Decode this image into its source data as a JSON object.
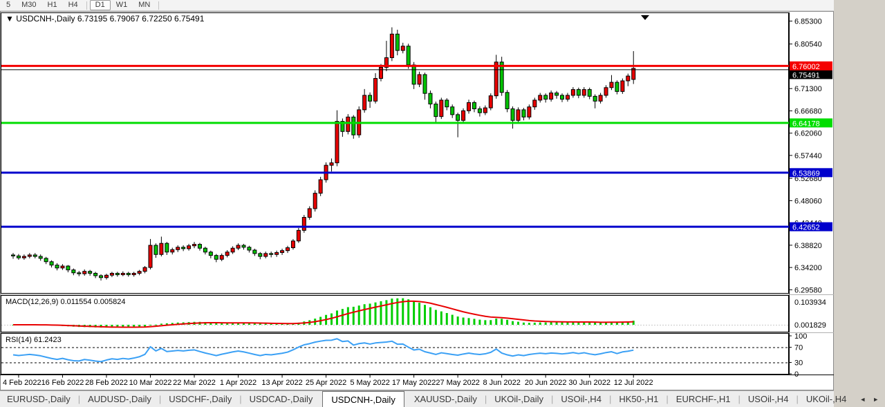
{
  "toolbar": {
    "items": [
      "5",
      "M30",
      "H1",
      "H4",
      "D1",
      "W1",
      "MN"
    ],
    "active": "D1",
    "separators_after": [
      "H4",
      "MN"
    ]
  },
  "chart": {
    "title_symbol": "USDCNH-,Daily",
    "ohlc_display": {
      "open": "6.73195",
      "high": "6.79067",
      "low": "6.72250",
      "close": "6.75491"
    },
    "price_axis_labels": [
      "6.85300",
      "6.80540",
      "6.71300",
      "6.66680",
      "6.62060",
      "6.57440",
      "6.52680",
      "6.48060",
      "6.43440",
      "6.38820",
      "6.34200",
      "6.29580"
    ],
    "ylim": [
      6.292,
      6.868
    ],
    "hlines": [
      {
        "value": 6.76002,
        "label": "6.76002",
        "color": "#f40000",
        "width": 3,
        "name": "resistance-line-red"
      },
      {
        "value": 6.64178,
        "label": "6.64178",
        "color": "#00dd00",
        "width": 3,
        "name": "support-line-green"
      },
      {
        "value": 6.53869,
        "label": "6.53869",
        "color": "#0000cc",
        "width": 3,
        "name": "support-line-blue-upper"
      },
      {
        "value": 6.42652,
        "label": "6.42652",
        "color": "#0000cc",
        "width": 3,
        "name": "support-line-blue-lower"
      }
    ],
    "bid_line": {
      "value": 6.75491,
      "label": "6.75491",
      "color": "#000000"
    }
  },
  "chart_data": {
    "type": "candlestick",
    "symbol": "USDCNH-",
    "timeframe": "Daily",
    "up_color": "#e60000",
    "down_color": "#00c300",
    "wick_color": "#000000",
    "x_labels": [
      "4 Feb 2022",
      "16 Feb 2022",
      "28 Feb 2022",
      "10 Mar 2022",
      "22 Mar 2022",
      "1 Apr 2022",
      "13 Apr 2022",
      "25 Apr 2022",
      "5 May 2022",
      "17 May 2022",
      "27 May 2022",
      "8 Jun 2022",
      "20 Jun 2022",
      "30 Jun 2022",
      "12 Jul 2022"
    ],
    "x_label_indices": [
      1,
      9,
      17,
      25,
      33,
      41,
      49,
      57,
      65,
      73,
      81,
      89,
      97,
      105,
      113
    ],
    "candles": [
      [
        6.368,
        6.372,
        6.36,
        6.366
      ],
      [
        6.366,
        6.37,
        6.358,
        6.362
      ],
      [
        6.362,
        6.369,
        6.358,
        6.365
      ],
      [
        6.365,
        6.372,
        6.361,
        6.368
      ],
      [
        6.368,
        6.372,
        6.361,
        6.365
      ],
      [
        6.365,
        6.369,
        6.356,
        6.361
      ],
      [
        6.361,
        6.364,
        6.349,
        6.354
      ],
      [
        6.354,
        6.357,
        6.342,
        6.347
      ],
      [
        6.347,
        6.351,
        6.336,
        6.341
      ],
      [
        6.341,
        6.349,
        6.337,
        6.345
      ],
      [
        6.345,
        6.347,
        6.332,
        6.337
      ],
      [
        6.337,
        6.34,
        6.326,
        6.331
      ],
      [
        6.331,
        6.335,
        6.324,
        6.329
      ],
      [
        6.329,
        6.338,
        6.325,
        6.334
      ],
      [
        6.334,
        6.337,
        6.325,
        6.33
      ],
      [
        6.33,
        6.333,
        6.32,
        6.325
      ],
      [
        6.325,
        6.328,
        6.315,
        6.321
      ],
      [
        6.321,
        6.329,
        6.317,
        6.326
      ],
      [
        6.326,
        6.333,
        6.322,
        6.33
      ],
      [
        6.33,
        6.333,
        6.323,
        6.327
      ],
      [
        6.327,
        6.334,
        6.324,
        6.33
      ],
      [
        6.33,
        6.333,
        6.323,
        6.327
      ],
      [
        6.327,
        6.333,
        6.323,
        6.33
      ],
      [
        6.33,
        6.337,
        6.326,
        6.334
      ],
      [
        6.334,
        6.345,
        6.33,
        6.342
      ],
      [
        6.342,
        6.401,
        6.338,
        6.388
      ],
      [
        6.388,
        6.392,
        6.362,
        6.369
      ],
      [
        6.369,
        6.406,
        6.365,
        6.392
      ],
      [
        6.392,
        6.395,
        6.368,
        6.374
      ],
      [
        6.374,
        6.383,
        6.369,
        6.379
      ],
      [
        6.379,
        6.388,
        6.374,
        6.384
      ],
      [
        6.384,
        6.388,
        6.376,
        6.381
      ],
      [
        6.381,
        6.391,
        6.377,
        6.387
      ],
      [
        6.387,
        6.395,
        6.382,
        6.39
      ],
      [
        6.39,
        6.393,
        6.377,
        6.382
      ],
      [
        6.382,
        6.385,
        6.369,
        6.374
      ],
      [
        6.374,
        6.377,
        6.361,
        6.367
      ],
      [
        6.367,
        6.37,
        6.353,
        6.359
      ],
      [
        6.359,
        6.371,
        6.355,
        6.367
      ],
      [
        6.367,
        6.378,
        6.363,
        6.374
      ],
      [
        6.374,
        6.386,
        6.37,
        6.382
      ],
      [
        6.382,
        6.392,
        6.378,
        6.388
      ],
      [
        6.388,
        6.391,
        6.379,
        6.384
      ],
      [
        6.384,
        6.387,
        6.373,
        6.378
      ],
      [
        6.378,
        6.381,
        6.366,
        6.371
      ],
      [
        6.371,
        6.374,
        6.359,
        6.365
      ],
      [
        6.365,
        6.375,
        6.361,
        6.371
      ],
      [
        6.371,
        6.375,
        6.363,
        6.369
      ],
      [
        6.369,
        6.377,
        6.364,
        6.373
      ],
      [
        6.373,
        6.381,
        6.368,
        6.377
      ],
      [
        6.377,
        6.387,
        6.372,
        6.383
      ],
      [
        6.383,
        6.401,
        6.379,
        6.397
      ],
      [
        6.397,
        6.424,
        6.393,
        6.419
      ],
      [
        6.419,
        6.451,
        6.414,
        6.446
      ],
      [
        6.446,
        6.469,
        6.441,
        6.464
      ],
      [
        6.464,
        6.502,
        6.458,
        6.496
      ],
      [
        6.496,
        6.53,
        6.49,
        6.524
      ],
      [
        6.524,
        6.56,
        6.518,
        6.554
      ],
      [
        6.554,
        6.568,
        6.541,
        6.559
      ],
      [
        6.559,
        6.668,
        6.552,
        6.645
      ],
      [
        6.645,
        6.651,
        6.613,
        6.624
      ],
      [
        6.624,
        6.66,
        6.618,
        6.654
      ],
      [
        6.654,
        6.658,
        6.609,
        6.617
      ],
      [
        6.617,
        6.676,
        6.611,
        6.669
      ],
      [
        6.669,
        6.712,
        6.663,
        6.699
      ],
      [
        6.699,
        6.705,
        6.673,
        6.687
      ],
      [
        6.687,
        6.745,
        6.682,
        6.734
      ],
      [
        6.734,
        6.764,
        6.728,
        6.757
      ],
      [
        6.757,
        6.812,
        6.749,
        6.777
      ],
      [
        6.777,
        6.84,
        6.77,
        6.826
      ],
      [
        6.826,
        6.835,
        6.782,
        6.792
      ],
      [
        6.792,
        6.808,
        6.786,
        6.801
      ],
      [
        6.801,
        6.806,
        6.754,
        6.762
      ],
      [
        6.762,
        6.768,
        6.712,
        6.722
      ],
      [
        6.722,
        6.748,
        6.716,
        6.742
      ],
      [
        6.742,
        6.746,
        6.69,
        6.703
      ],
      [
        6.703,
        6.709,
        6.672,
        6.681
      ],
      [
        6.681,
        6.686,
        6.641,
        6.655
      ],
      [
        6.655,
        6.694,
        6.65,
        6.689
      ],
      [
        6.689,
        6.693,
        6.668,
        6.675
      ],
      [
        6.675,
        6.68,
        6.652,
        6.659
      ],
      [
        6.659,
        6.663,
        6.612,
        6.647
      ],
      [
        6.647,
        6.672,
        6.641,
        6.667
      ],
      [
        6.667,
        6.69,
        6.661,
        6.684
      ],
      [
        6.684,
        6.688,
        6.664,
        6.671
      ],
      [
        6.671,
        6.676,
        6.655,
        6.663
      ],
      [
        6.663,
        6.678,
        6.658,
        6.673
      ],
      [
        6.673,
        6.703,
        6.668,
        6.698
      ],
      [
        6.698,
        6.783,
        6.692,
        6.768
      ],
      [
        6.768,
        6.779,
        6.698,
        6.705
      ],
      [
        6.705,
        6.71,
        6.664,
        6.671
      ],
      [
        6.671,
        6.676,
        6.63,
        6.647
      ],
      [
        6.647,
        6.674,
        6.641,
        6.669
      ],
      [
        6.669,
        6.673,
        6.647,
        6.654
      ],
      [
        6.654,
        6.68,
        6.649,
        6.675
      ],
      [
        6.675,
        6.694,
        6.669,
        6.689
      ],
      [
        6.689,
        6.704,
        6.684,
        6.699
      ],
      [
        6.699,
        6.703,
        6.684,
        6.691
      ],
      [
        6.691,
        6.709,
        6.686,
        6.704
      ],
      [
        6.704,
        6.708,
        6.692,
        6.699
      ],
      [
        6.699,
        6.703,
        6.685,
        6.691
      ],
      [
        6.691,
        6.704,
        6.686,
        6.699
      ],
      [
        6.699,
        6.716,
        6.694,
        6.711
      ],
      [
        6.711,
        6.715,
        6.693,
        6.699
      ],
      [
        6.699,
        6.716,
        6.694,
        6.711
      ],
      [
        6.711,
        6.715,
        6.691,
        6.697
      ],
      [
        6.697,
        6.701,
        6.672,
        6.687
      ],
      [
        6.687,
        6.704,
        6.682,
        6.699
      ],
      [
        6.699,
        6.72,
        6.694,
        6.715
      ],
      [
        6.715,
        6.741,
        6.71,
        6.726
      ],
      [
        6.726,
        6.73,
        6.701,
        6.707
      ],
      [
        6.707,
        6.734,
        6.702,
        6.729
      ],
      [
        6.729,
        6.744,
        6.718,
        6.739
      ],
      [
        6.73195,
        6.79067,
        6.7225,
        6.75491
      ]
    ],
    "indicators": [
      {
        "type": "MACD",
        "label": "MACD(12,26,9)",
        "value_main": "0.011554",
        "value_signal": "0.005824",
        "axis_max_label": "0.103934",
        "axis_zero_label": "0.001829",
        "histogram_color": "#00ce00",
        "signal_color": "#e80000"
      },
      {
        "type": "RSI",
        "label": "RSI(14)",
        "value": "61.2423",
        "levels": [
          70,
          30
        ],
        "axis_labels": [
          "100",
          "70",
          "30",
          "0"
        ],
        "line_color": "#3aa0f5"
      }
    ]
  },
  "tabs": {
    "items": [
      "EURUSD-,Daily",
      "AUDUSD-,Daily",
      "USDCHF-,Daily",
      "USDCAD-,Daily",
      "USDCNH-,Daily",
      "XAUUSD-,Daily",
      "UKOil-,Daily",
      "USOil-,H4",
      "HK50-,H1",
      "EURCHF-,H1",
      "USOil-,H4",
      "UKOil-,H4"
    ],
    "active_index": 4,
    "nav_left": "◄",
    "nav_right": "►"
  }
}
